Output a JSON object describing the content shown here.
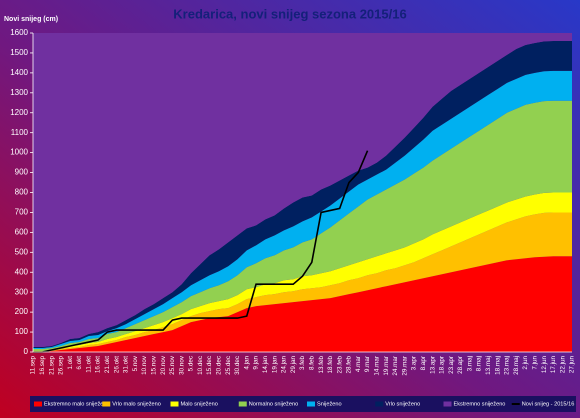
{
  "chart_data": {
    "type": "stacked_area",
    "title": "Kredarica, novi snijeg sezona 2015/16",
    "ylabel": "Novi snijeg (cm)",
    "categories": [
      "11.sep",
      "16.sep",
      "21.sep",
      "26.sep",
      "1.okt",
      "6.okt",
      "11.okt",
      "16.okt",
      "21.okt",
      "26.okt",
      "31.okt",
      "5.nov",
      "10.nov",
      "15.nov",
      "20.nov",
      "25.nov",
      "30.nov",
      "5.dec",
      "10.dec",
      "15.dec",
      "20.dec",
      "25.dec",
      "30.dec",
      "4.jan",
      "9.jan",
      "14.jan",
      "19.jan",
      "24.jan",
      "29.jan",
      "3.feb",
      "8.feb",
      "13.feb",
      "18.feb",
      "23.feb",
      "28.feb",
      "4.mar",
      "9.mar",
      "14.mar",
      "19.mar",
      "24.mar",
      "29.mar",
      "3.apr",
      "8.apr",
      "13.apr",
      "18.apr",
      "23.apr",
      "28.apr",
      "3.maj",
      "8.maj",
      "13.maj",
      "18.maj",
      "23.maj",
      "28.maj",
      "2.jun",
      "7.jun",
      "12.jun",
      "17.jun",
      "22.jun",
      "27.jun"
    ],
    "ylim": [
      0,
      1600
    ],
    "yticks": [
      0,
      100,
      200,
      300,
      400,
      500,
      600,
      700,
      800,
      900,
      1000,
      1100,
      1200,
      1300,
      1400,
      1500,
      1600
    ],
    "series": [
      {
        "name": "Ekstremno malo sniježeno",
        "color": "#ff0000",
        "values": [
          0,
          0,
          5,
          10,
          15,
          20,
          25,
          30,
          40,
          50,
          60,
          70,
          80,
          90,
          100,
          110,
          130,
          150,
          160,
          170,
          175,
          180,
          200,
          220,
          230,
          235,
          240,
          245,
          250,
          255,
          260,
          265,
          270,
          280,
          290,
          300,
          310,
          320,
          330,
          340,
          350,
          360,
          370,
          380,
          390,
          400,
          410,
          420,
          430,
          440,
          450,
          460,
          465,
          470,
          475,
          478,
          480,
          480,
          480
        ]
      },
      {
        "name": "Vrlo malo sniježeno",
        "color": "#ffc000",
        "values": [
          0,
          0,
          0,
          5,
          5,
          5,
          10,
          10,
          10,
          10,
          15,
          15,
          20,
          20,
          25,
          30,
          30,
          30,
          35,
          35,
          40,
          40,
          40,
          45,
          45,
          50,
          50,
          55,
          55,
          60,
          60,
          60,
          65,
          65,
          70,
          70,
          75,
          75,
          80,
          80,
          85,
          90,
          100,
          110,
          120,
          130,
          140,
          150,
          160,
          170,
          180,
          190,
          200,
          210,
          215,
          220,
          220,
          220,
          220
        ]
      },
      {
        "name": "Malo sniježeno",
        "color": "#ffff00",
        "values": [
          5,
          5,
          5,
          5,
          10,
          10,
          10,
          10,
          15,
          15,
          15,
          20,
          20,
          25,
          25,
          30,
          30,
          35,
          35,
          40,
          40,
          45,
          45,
          50,
          50,
          55,
          55,
          60,
          60,
          65,
          65,
          70,
          70,
          75,
          75,
          80,
          80,
          85,
          85,
          90,
          90,
          95,
          95,
          100,
          100,
          100,
          100,
          100,
          100,
          100,
          100,
          100,
          100,
          100,
          100,
          100,
          100,
          100,
          100
        ]
      },
      {
        "name": "Normalno sniježeno",
        "color": "#92d050",
        "values": [
          10,
          10,
          10,
          10,
          15,
          15,
          20,
          20,
          25,
          25,
          30,
          35,
          40,
          45,
          50,
          55,
          60,
          65,
          70,
          75,
          80,
          90,
          100,
          110,
          120,
          130,
          140,
          150,
          160,
          170,
          180,
          200,
          220,
          240,
          260,
          280,
          300,
          310,
          320,
          330,
          340,
          350,
          360,
          370,
          380,
          390,
          400,
          410,
          420,
          430,
          440,
          450,
          455,
          460,
          460,
          460,
          460,
          460,
          460
        ]
      },
      {
        "name": "Sniježeno",
        "color": "#00b0f0",
        "values": [
          5,
          5,
          5,
          10,
          10,
          10,
          15,
          15,
          15,
          20,
          20,
          25,
          30,
          35,
          40,
          45,
          50,
          55,
          60,
          65,
          70,
          75,
          80,
          85,
          90,
          95,
          100,
          100,
          105,
          105,
          110,
          110,
          110,
          110,
          110,
          110,
          100,
          100,
          100,
          110,
          120,
          130,
          140,
          150,
          150,
          150,
          150,
          150,
          150,
          150,
          150,
          150,
          150,
          150,
          150,
          150,
          150,
          150,
          150
        ]
      },
      {
        "name": "Vrlo sniježeno",
        "color": "#002060",
        "values": [
          5,
          5,
          5,
          5,
          10,
          10,
          10,
          15,
          15,
          15,
          20,
          20,
          25,
          25,
          30,
          30,
          40,
          60,
          80,
          100,
          110,
          120,
          120,
          110,
          100,
          100,
          100,
          110,
          120,
          120,
          110,
          110,
          100,
          90,
          80,
          70,
          60,
          60,
          70,
          80,
          90,
          100,
          110,
          120,
          130,
          140,
          140,
          140,
          140,
          140,
          140,
          140,
          150,
          150,
          150,
          150,
          150,
          150,
          150
        ]
      },
      {
        "name": "Ekstremno sniježeno",
        "color": "#7030a0",
        "fill_to_top": true
      },
      {
        "name": "Novi snijeg - 2015/16",
        "color": "#000000",
        "type": "line",
        "values": [
          0,
          0,
          10,
          20,
          30,
          40,
          50,
          60,
          100,
          110,
          110,
          110,
          110,
          110,
          110,
          160,
          170,
          170,
          170,
          170,
          170,
          170,
          170,
          180,
          340,
          340,
          340,
          340,
          340,
          380,
          450,
          700,
          710,
          720,
          850,
          900,
          1010,
          null,
          null,
          null,
          null,
          null,
          null,
          null,
          null,
          null,
          null,
          null,
          null,
          null,
          null,
          null,
          null,
          null,
          null,
          null,
          null,
          null,
          null
        ]
      }
    ]
  }
}
